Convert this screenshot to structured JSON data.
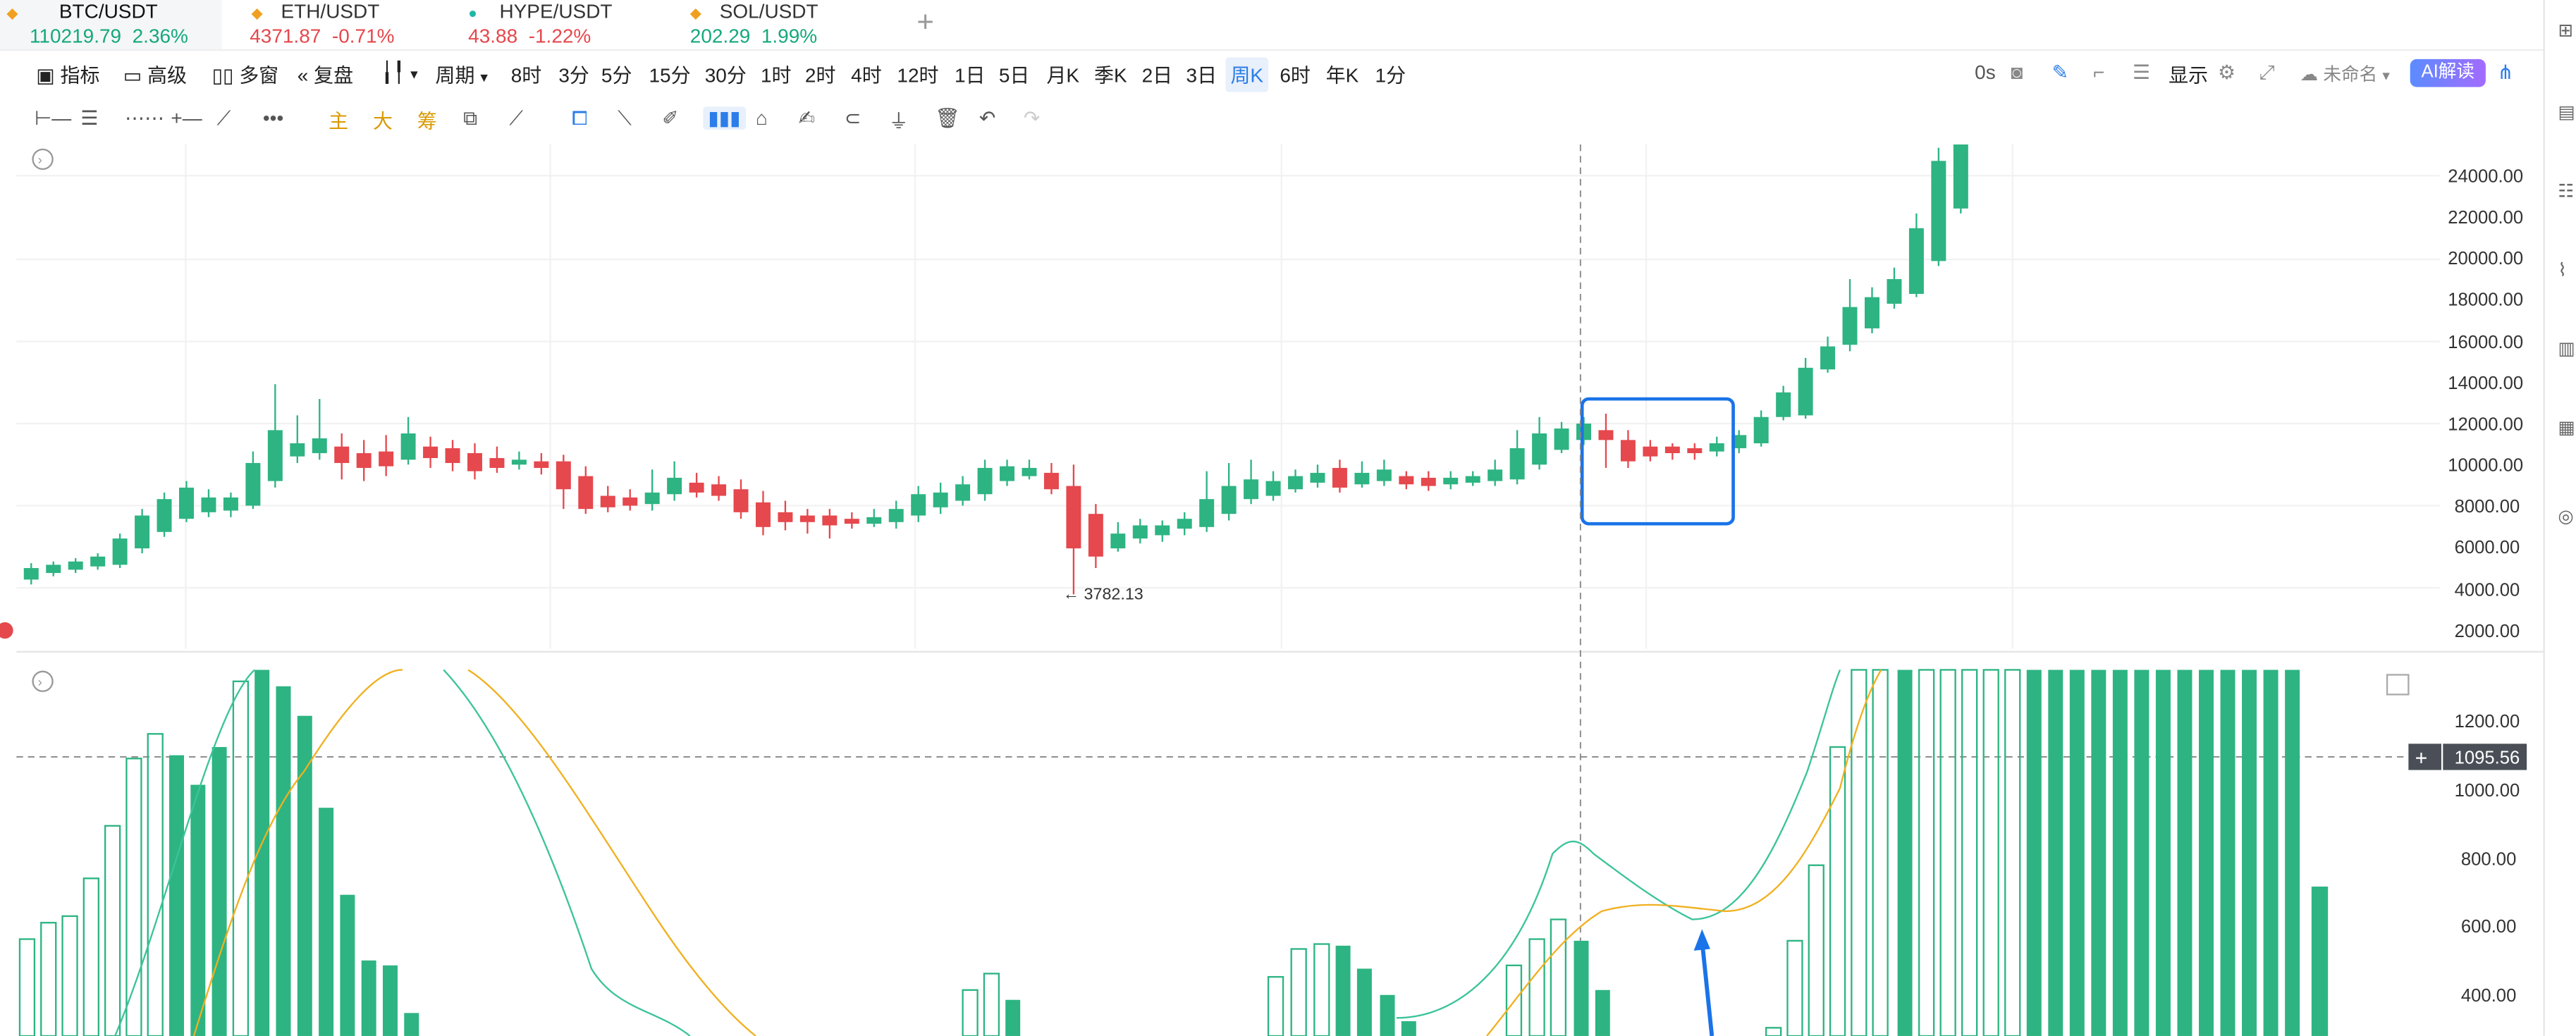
{
  "tickers": [
    {
      "symbol": "BTC/USDT",
      "price": "110219.79",
      "change": "2.36%",
      "dir": "up"
    },
    {
      "symbol": "ETH/USDT",
      "price": "4371.87",
      "change": "-0.71%",
      "dir": "down"
    },
    {
      "symbol": "HYPE/USDT",
      "price": "43.88",
      "change": "-1.22%",
      "dir": "down"
    },
    {
      "symbol": "SOL/USDT",
      "price": "202.29",
      "change": "1.99%",
      "dir": "up"
    }
  ],
  "tab_add": "+",
  "toolbar": {
    "indicator": "指标",
    "advanced": "高级",
    "multi_window": "多窗",
    "replay": "复盘",
    "period": "周期",
    "periods": [
      "8时",
      "3分",
      "5分",
      "15分",
      "30分",
      "1时",
      "2时",
      "4时",
      "12时",
      "1日",
      "5日",
      "月K",
      "季K",
      "2日",
      "3日",
      "周K",
      "6时",
      "年K",
      "1分"
    ],
    "selected_period": "周K",
    "latency": "0s",
    "display": "显示",
    "unnamed": "未命名",
    "ai": "AI解读"
  },
  "drawtools": {
    "main": "主",
    "big": "大",
    "chip": "筹"
  },
  "price_axis": [
    "24000.00",
    "22000.00",
    "20000.00",
    "18000.00",
    "16000.00",
    "14000.00",
    "12000.00",
    "10000.00",
    "8000.00",
    "6000.00",
    "4000.00",
    "2000.00"
  ],
  "indicator_axis": [
    "1200.00",
    "1000.00",
    "800.00",
    "600.00",
    "400.00"
  ],
  "crosshair_value": "1095.56",
  "low_marker": "← 3782.13",
  "colors": {
    "up": "#2db482",
    "down": "#e5484d",
    "accent": "#2b7de9",
    "dif": "#3cc39a",
    "dea": "#f0b020"
  }
}
